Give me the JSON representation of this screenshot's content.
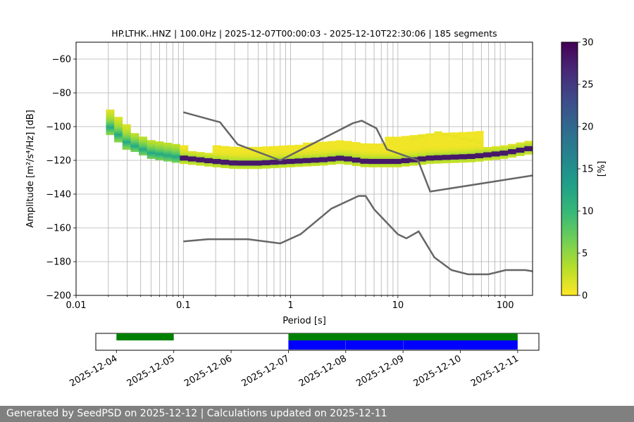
{
  "chart_data": {
    "type": "heatmap",
    "title": "HP.LTHK..HNZ | 100.0Hz | 2025-12-07T00:00:03 - 2025-12-10T22:30:06 | 185 segments",
    "xlabel": "Period [s]",
    "ylabel": "Amplitude [m²/s⁴/Hz] [dB]",
    "x_scale": "log",
    "xlim": [
      0.01,
      180
    ],
    "ylim": [
      -200,
      -50
    ],
    "x_ticks": [
      0.01,
      0.1,
      1,
      10,
      100
    ],
    "x_tick_labels": [
      "0.01",
      "0.1",
      "1",
      "10",
      "100"
    ],
    "y_ticks": [
      -200,
      -180,
      -160,
      -140,
      -120,
      -100,
      -80,
      -60
    ],
    "y_tick_labels": [
      "−200",
      "−180",
      "−160",
      "−140",
      "−120",
      "−100",
      "−80",
      "−60"
    ],
    "grid": true,
    "colormap": "viridis_r",
    "colorbar": {
      "label": "[%]",
      "range": [
        0,
        30
      ],
      "ticks": [
        0,
        5,
        10,
        15,
        20,
        25,
        30
      ],
      "tick_labels": [
        "0",
        "5",
        "10",
        "15",
        "20",
        "25",
        "30"
      ],
      "colors": [
        "#fde725",
        "#b5de2b",
        "#6ece58",
        "#35b779",
        "#1f9e89",
        "#26828e",
        "#31688e",
        "#3e4989",
        "#482878",
        "#440154"
      ]
    },
    "density_mode": {
      "period": [
        0.02,
        0.03,
        0.05,
        0.1,
        0.2,
        0.3,
        0.5,
        1,
        2,
        3,
        5,
        7,
        10,
        20,
        50,
        100,
        180
      ],
      "db": [
        -100,
        -110,
        -116,
        -119,
        -121,
        -122,
        -122,
        -121,
        -120,
        -119,
        -121,
        -121,
        -121,
        -119,
        -118,
        -116,
        -113
      ]
    },
    "nhnm": {
      "period": [
        0.1,
        0.22,
        0.32,
        0.8,
        3.8,
        4.6,
        6.3,
        7.9,
        15.4,
        20,
        354.8
      ],
      "db": [
        -91.5,
        -97.4,
        -110.5,
        -120,
        -98,
        -96.5,
        -101,
        -113.5,
        -120,
        -138.5,
        -126
      ]
    },
    "nlnm": {
      "period": [
        0.1,
        0.17,
        0.4,
        0.8,
        1.24,
        2.4,
        4.3,
        5,
        6,
        10,
        12,
        15.6,
        21.9,
        31.6,
        45,
        70,
        101,
        154,
        180
      ],
      "db": [
        -168,
        -166.7,
        -166.7,
        -169.2,
        -163.7,
        -148.6,
        -141.1,
        -141.1,
        -149,
        -163.8,
        -166.2,
        -162.1,
        -177.5,
        -185,
        -187.5,
        -187.5,
        -185,
        -185,
        -185.7
      ]
    },
    "model_line_color": "#666666",
    "timeline": {
      "dates": [
        "2025-12-04",
        "2025-12-05",
        "2025-12-06",
        "2025-12-07",
        "2025-12-08",
        "2025-12-09",
        "2025-12-10",
        "2025-12-11"
      ],
      "green_spans": [
        [
          "2025-12-04T00:00",
          "2025-12-05T00:00"
        ],
        [
          "2025-12-07T00:00",
          "2025-12-10T23:59"
        ]
      ],
      "blue_spans": [
        [
          "2025-12-07T00:00",
          "2025-12-07T23:59"
        ],
        [
          "2025-12-08T00:02",
          "2025-12-08T23:59"
        ],
        [
          "2025-12-09T00:02",
          "2025-12-10T23:59"
        ]
      ],
      "green_color": "#008000",
      "blue_color": "#0000ff"
    }
  },
  "footer": {
    "text": "Generated by SeedPSD on 2025-12-12 | Calculations updated on 2025-12-11"
  }
}
